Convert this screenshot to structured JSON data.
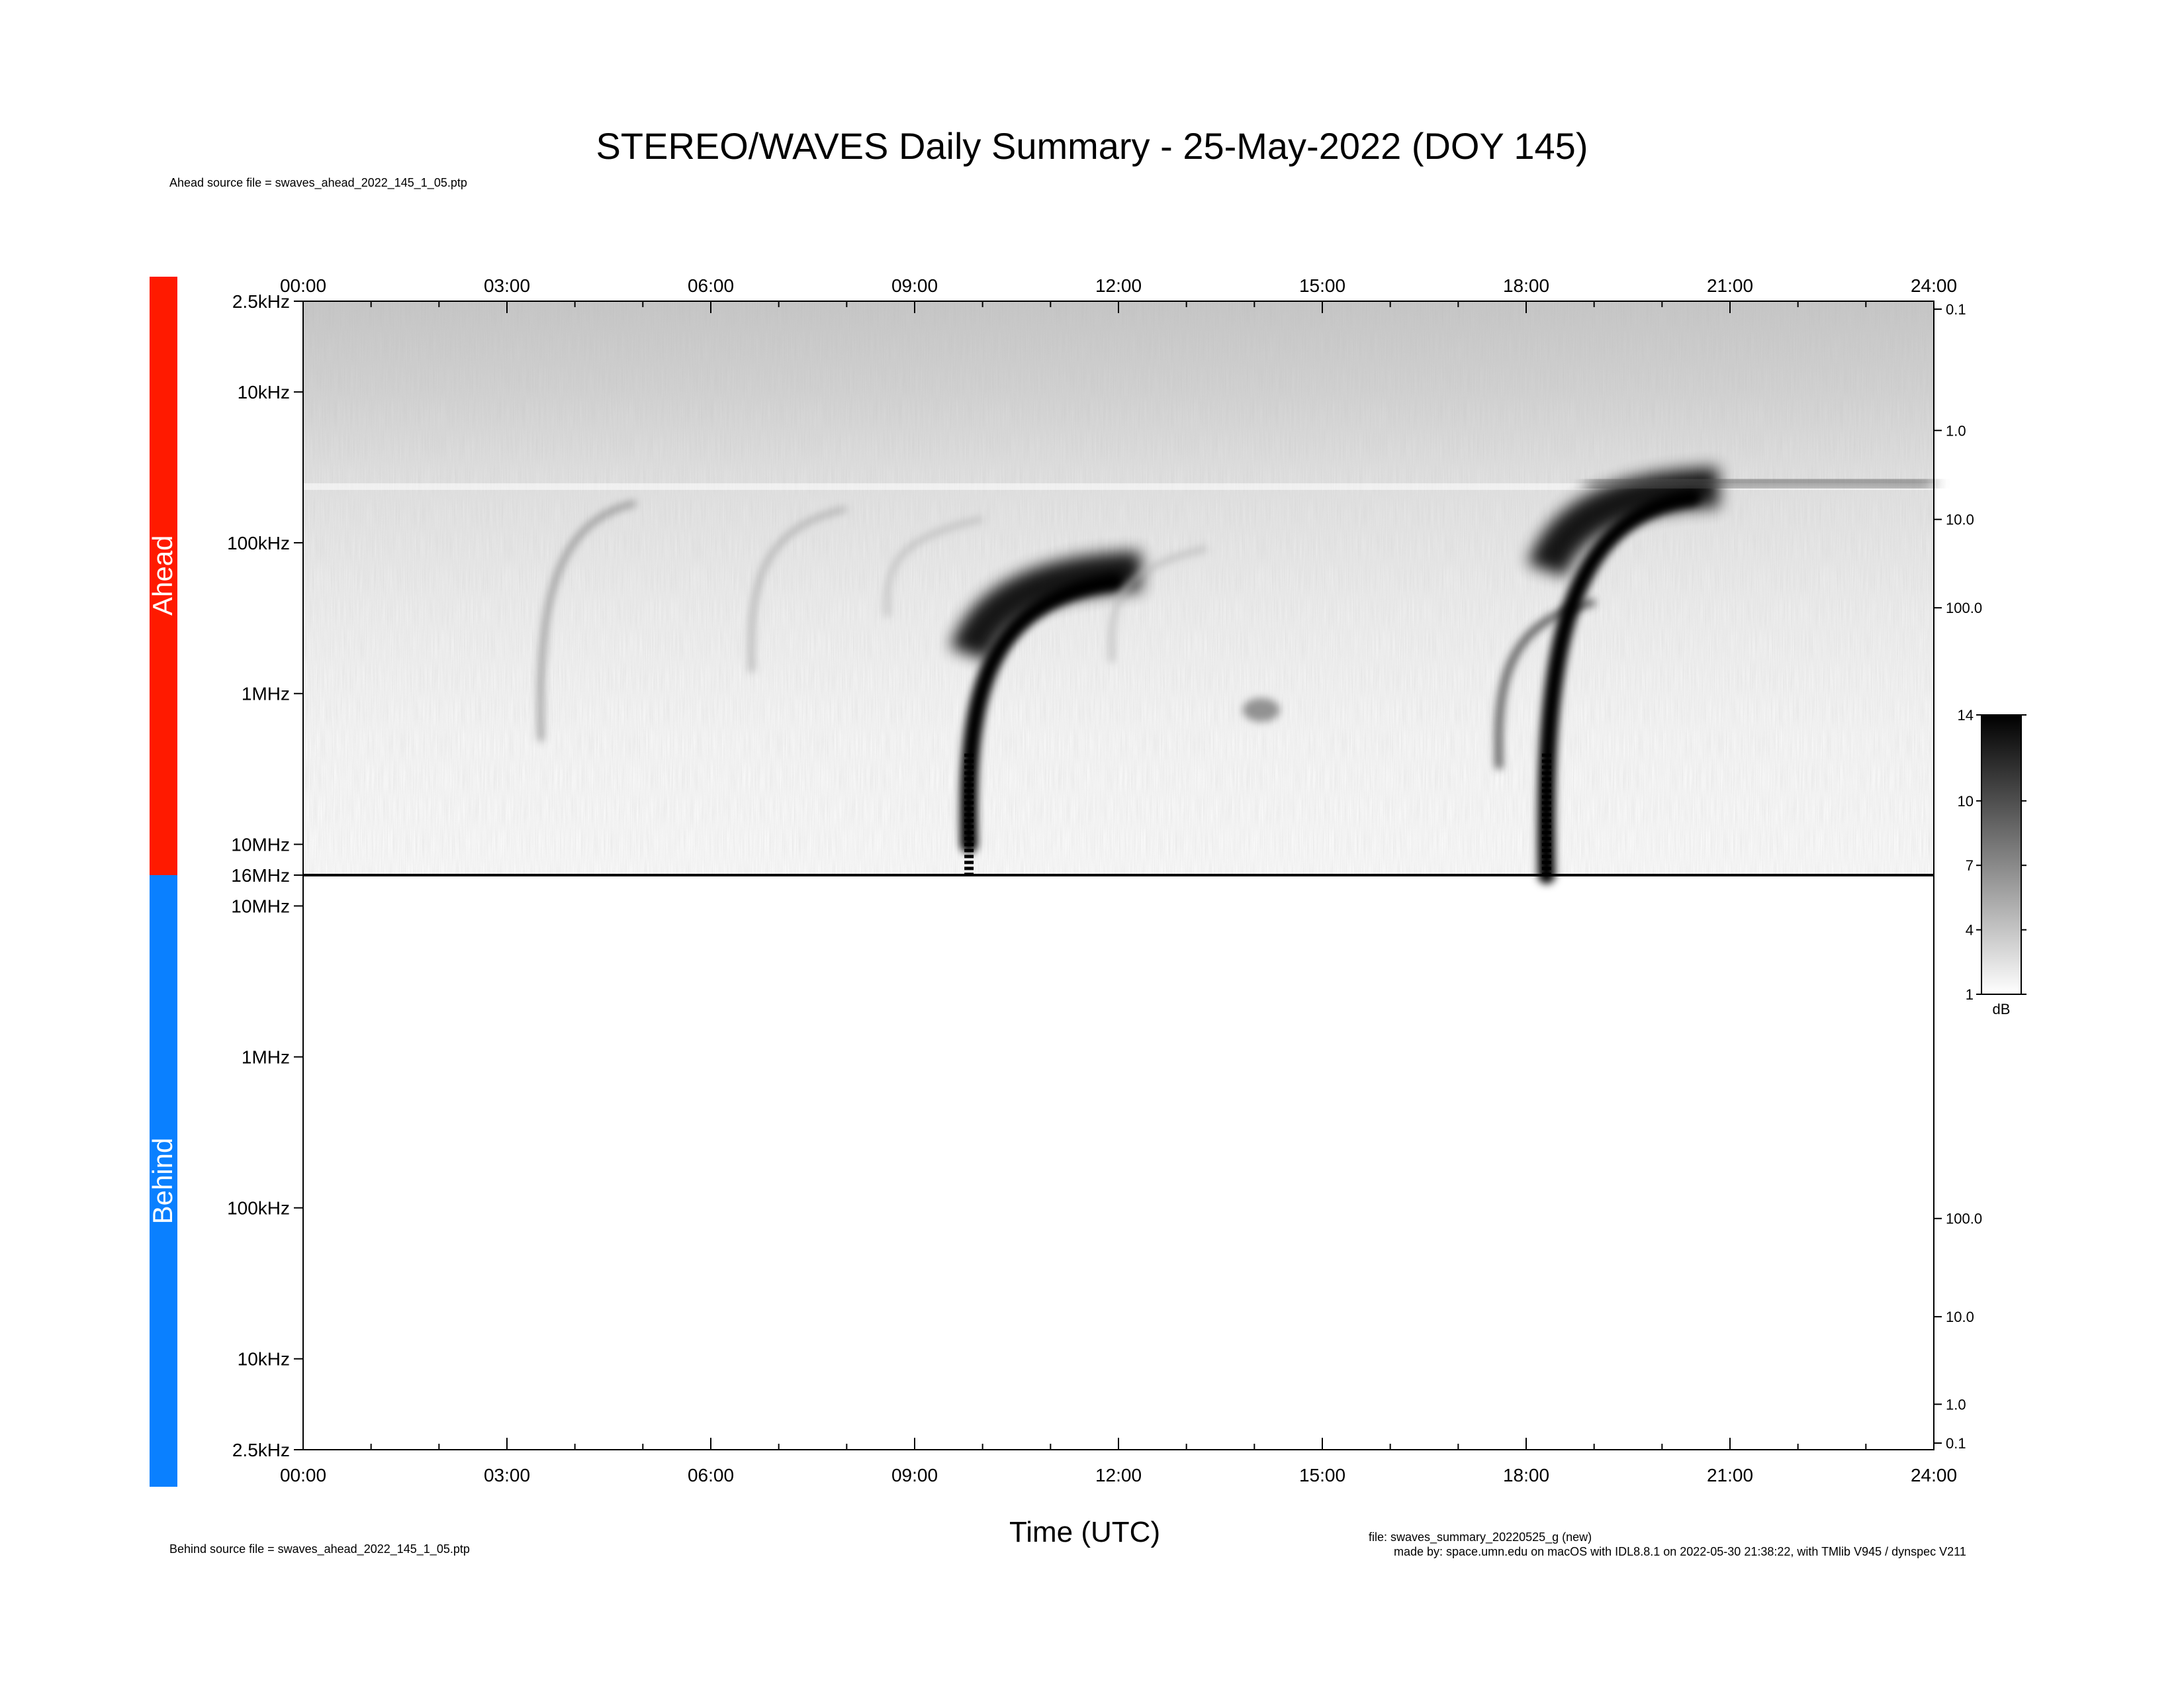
{
  "title": "STEREO/WAVES Daily Summary - 25-May-2022 (DOY 145)",
  "ahead_source": "Ahead source file = swaves_ahead_2022_145_1_05.ptp",
  "behind_source": "Behind source file = swaves_ahead_2022_145_1_05.ptp",
  "footer": {
    "file_line": "file: swaves_summary_20220525_g (new)",
    "made_by_line": "made by: space.umn.edu on macOS with IDL8.8.1 on 2022-05-30 21:38:22, with TMlib V945 / dynspec V211"
  },
  "colors": {
    "ahead": "#ff1a00",
    "behind": "#0a80ff"
  },
  "chart_data": {
    "type": "heatmap",
    "xlabel": "Time (UTC)",
    "x_ticks": [
      "00:00",
      "03:00",
      "06:00",
      "09:00",
      "12:00",
      "15:00",
      "18:00",
      "21:00",
      "24:00"
    ],
    "x_range_hours": [
      0,
      24
    ],
    "y_scale": "log",
    "colormap": "grayscale, white to black",
    "colorbar": {
      "unit": "dB",
      "ticks": [
        "14",
        "10",
        "7",
        "4",
        "1"
      ],
      "range": [
        1,
        14
      ]
    },
    "panels": [
      {
        "name": "Ahead",
        "freq_range_hz": [
          2500,
          16000000
        ],
        "y_ticks": [
          "2.5kHz",
          "10kHz",
          "100kHz",
          "1MHz",
          "10MHz",
          "16MHz"
        ],
        "right_axis_ticks": [
          "0.1",
          "1.0",
          "10.0",
          "100.0"
        ],
        "events": [
          {
            "kind": "type III burst",
            "t_hours": 3.5,
            "f_top_hz": 55000,
            "f_bot_hz": 2000000,
            "intensity_db": 7
          },
          {
            "kind": "type III burst",
            "t_hours": 6.6,
            "f_top_hz": 60000,
            "f_bot_hz": 700000,
            "intensity_db": 5
          },
          {
            "kind": "type III burst",
            "t_hours": 8.6,
            "f_top_hz": 70000,
            "f_bot_hz": 300000,
            "intensity_db": 4
          },
          {
            "kind": "type III burst",
            "t_hours": 9.8,
            "f_top_hz": 180000,
            "f_bot_hz": 10000000,
            "intensity_db": 14
          },
          {
            "kind": "type III burst",
            "t_hours": 11.9,
            "f_top_hz": 110000,
            "f_bot_hz": 600000,
            "intensity_db": 4
          },
          {
            "kind": "radio patch",
            "t_hours": 14.1,
            "f_top_hz": 1100000,
            "f_bot_hz": 1500000,
            "intensity_db": 6
          },
          {
            "kind": "type III burst",
            "t_hours": 17.6,
            "f_top_hz": 250000,
            "f_bot_hz": 3000000,
            "intensity_db": 10
          },
          {
            "kind": "type III burst",
            "t_hours": 18.3,
            "f_top_hz": 50000,
            "f_bot_hz": 16000000,
            "intensity_db": 14
          }
        ]
      },
      {
        "name": "Behind",
        "freq_range_hz": [
          2500,
          16000000
        ],
        "y_ticks": [
          "10MHz",
          "1MHz",
          "100kHz",
          "10kHz",
          "2.5kHz"
        ],
        "right_axis_ticks": [
          "100.0",
          "10.0",
          "1.0",
          "0.1"
        ],
        "events": []
      }
    ]
  }
}
